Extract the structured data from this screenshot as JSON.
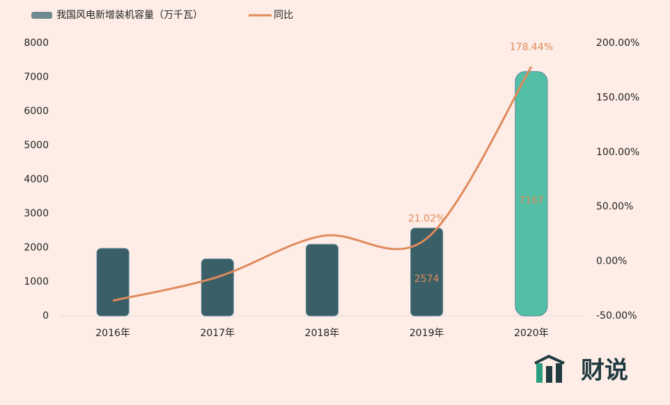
{
  "chart_data": {
    "type": "bar-line",
    "categories": [
      "2016年",
      "2017年",
      "2018年",
      "2019年",
      "2020年"
    ],
    "series": [
      {
        "name": "我国风电新增装机容量（万千瓦）",
        "type": "bar",
        "color": "#6e8a90",
        "colors": [
          "#3a5f66",
          "#3a5f66",
          "#3a5f66",
          "#3a5f66",
          "#52bfa6"
        ],
        "label_color": "#e08a5c",
        "values": [
          1980,
          1670,
          2100,
          2574,
          7167
        ],
        "value_labels": [
          null,
          null,
          null,
          "2574",
          "7167"
        ]
      },
      {
        "name": "同比",
        "type": "line",
        "axis": "y2",
        "color": "#e08a5c",
        "values": [
          -36.0,
          -14.3,
          23.3,
          21.02,
          178.44
        ],
        "value_labels": [
          null,
          null,
          null,
          "21.02%",
          "178.44%"
        ]
      }
    ],
    "ylim": [
      0,
      8000
    ],
    "yticks": [
      0,
      1000,
      2000,
      3000,
      4000,
      5000,
      6000,
      7000,
      8000
    ],
    "y2lim": [
      -50,
      200
    ],
    "y2ticks": [
      {
        "value": -50,
        "label": "-50.00%"
      },
      {
        "value": 0,
        "label": "0.00%"
      },
      {
        "value": 50,
        "label": "50.00%"
      },
      {
        "value": 100,
        "label": "100.00%"
      },
      {
        "value": 150,
        "label": "150.00%"
      },
      {
        "value": 200,
        "label": "200.00%"
      }
    ],
    "logo": "财说"
  }
}
